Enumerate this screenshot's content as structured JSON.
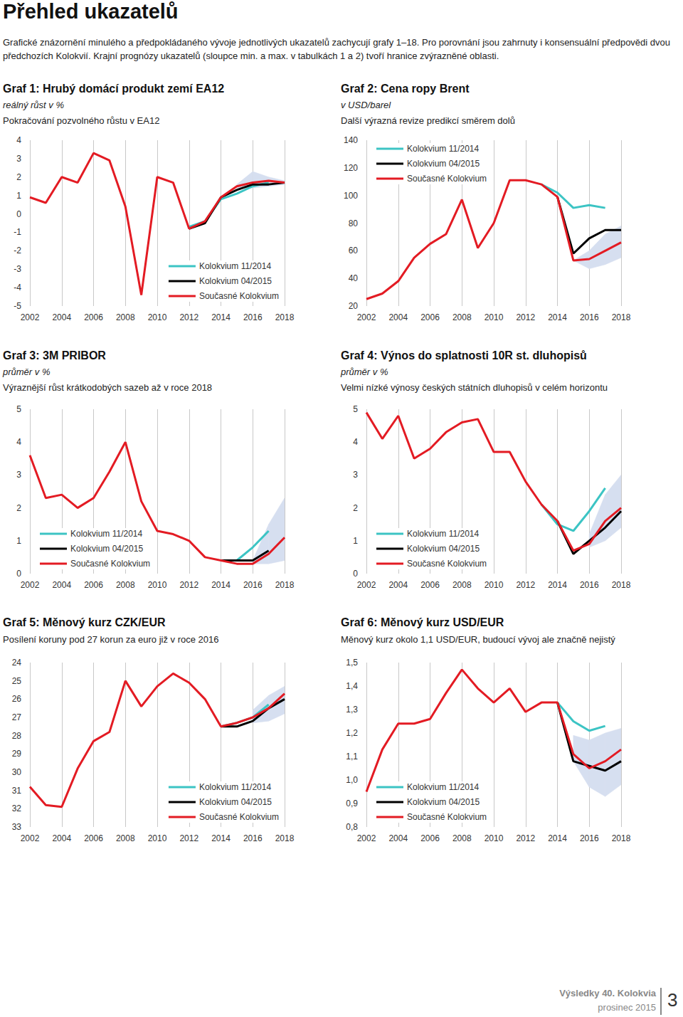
{
  "heading": "Přehled ukazatelů",
  "intro": "Grafické znázornění minulého a předpokládaného vývoje jednotlivých ukazatelů zachycují grafy 1–18. Pro porovnání jsou zahrnuty i konsensuální předpovědi dvou předchozích Kolokvií. Krajní prognózy ukazatelů (sloupce min. a max. v tabulkách 1 a 2) tvoří hranice zvýrazněné oblasti.",
  "footer": {
    "line1": "Výsledky 40. Kolokvia",
    "line2": "prosinec 2015",
    "page": "3"
  },
  "chart_data": [
    {
      "type": "line",
      "title": "Graf 1: Hrubý domácí produkt zemí EA12",
      "subtitle": "reálný růst v %",
      "caption": "Pokračování pozvolného růstu v EA12",
      "x": [
        2002,
        2003,
        2004,
        2005,
        2006,
        2007,
        2008,
        2009,
        2010,
        2011,
        2012,
        2013,
        2014,
        2015,
        2016,
        2017,
        2018
      ],
      "xlim": [
        2002,
        2018
      ],
      "xticks": [
        2002,
        2004,
        2006,
        2008,
        2010,
        2012,
        2014,
        2016,
        2018
      ],
      "ylim": [
        -5,
        4
      ],
      "yticks": [
        -5,
        -4,
        -3,
        -2,
        -1,
        0,
        1,
        2,
        3,
        4
      ],
      "grid": true,
      "legend": "lower right",
      "range": {
        "low": [
          null,
          null,
          null,
          null,
          null,
          null,
          null,
          null,
          null,
          null,
          null,
          null,
          null,
          1.4,
          1.4,
          1.5,
          1.6
        ],
        "high": [
          null,
          null,
          null,
          null,
          null,
          null,
          null,
          null,
          null,
          null,
          null,
          null,
          null,
          1.6,
          2.3,
          2.0,
          1.8
        ]
      },
      "series": [
        {
          "name": "Kolokvium 11/2014",
          "color": "#3cc4c4",
          "values": [
            null,
            null,
            null,
            null,
            null,
            null,
            null,
            null,
            null,
            null,
            -0.7,
            -0.4,
            0.8,
            1.1,
            1.5,
            1.7,
            null
          ]
        },
        {
          "name": "Kolokvium 04/2015",
          "color": "#000000",
          "values": [
            null,
            null,
            null,
            null,
            null,
            null,
            null,
            null,
            null,
            null,
            -0.8,
            -0.5,
            0.9,
            1.3,
            1.6,
            1.6,
            1.7
          ]
        },
        {
          "name": "Současné Kolokvium",
          "color": "#e31b23",
          "values": [
            0.9,
            0.6,
            2.0,
            1.7,
            3.3,
            2.9,
            0.4,
            -4.4,
            2.0,
            1.7,
            -0.8,
            -0.4,
            0.9,
            1.5,
            1.7,
            1.8,
            1.7
          ]
        }
      ]
    },
    {
      "type": "line",
      "title": "Graf 2: Cena ropy Brent",
      "subtitle": "v USD/barel",
      "caption": "Další výrazná revize predikcí směrem dolů",
      "x": [
        2002,
        2003,
        2004,
        2005,
        2006,
        2007,
        2008,
        2009,
        2010,
        2011,
        2012,
        2013,
        2014,
        2015,
        2016,
        2017,
        2018
      ],
      "xlim": [
        2002,
        2018
      ],
      "xticks": [
        2002,
        2004,
        2006,
        2008,
        2010,
        2012,
        2014,
        2016,
        2018
      ],
      "ylim": [
        20,
        140
      ],
      "yticks": [
        20,
        40,
        60,
        80,
        100,
        120,
        140
      ],
      "grid": true,
      "legend": "upper left",
      "range": {
        "low": [
          null,
          null,
          null,
          null,
          null,
          null,
          null,
          null,
          null,
          null,
          null,
          null,
          null,
          53,
          47,
          50,
          55
        ],
        "high": [
          null,
          null,
          null,
          null,
          null,
          null,
          null,
          null,
          null,
          null,
          null,
          null,
          null,
          53,
          60,
          72,
          78
        ]
      },
      "series": [
        {
          "name": "Kolokvium 11/2014",
          "color": "#3cc4c4",
          "values": [
            null,
            null,
            null,
            null,
            null,
            null,
            null,
            null,
            null,
            null,
            null,
            108,
            102,
            91,
            93,
            91,
            null
          ]
        },
        {
          "name": "Kolokvium 04/2015",
          "color": "#000000",
          "values": [
            null,
            null,
            null,
            null,
            null,
            null,
            null,
            null,
            null,
            null,
            null,
            null,
            99,
            58,
            69,
            75,
            75
          ]
        },
        {
          "name": "Současné Kolokvium",
          "color": "#e31b23",
          "values": [
            25,
            29,
            38,
            55,
            65,
            72,
            97,
            62,
            80,
            111,
            111,
            108,
            99,
            53,
            54,
            60,
            66
          ]
        }
      ]
    },
    {
      "type": "line",
      "title": "Graf 3: 3M PRIBOR",
      "subtitle": "průměr v %",
      "caption": "Výraznější růst krátkodobých sazeb až v roce 2018",
      "x": [
        2002,
        2003,
        2004,
        2005,
        2006,
        2007,
        2008,
        2009,
        2010,
        2011,
        2012,
        2013,
        2014,
        2015,
        2016,
        2017,
        2018
      ],
      "xlim": [
        2002,
        2018
      ],
      "xticks": [
        2002,
        2004,
        2006,
        2008,
        2010,
        2012,
        2014,
        2016,
        2018
      ],
      "ylim": [
        0,
        5
      ],
      "yticks": [
        0,
        1,
        2,
        3,
        4,
        5
      ],
      "grid": true,
      "legend": "lower left",
      "range": {
        "low": [
          null,
          null,
          null,
          null,
          null,
          null,
          null,
          null,
          null,
          null,
          null,
          null,
          null,
          null,
          0.3,
          0.3,
          0.4
        ],
        "high": [
          null,
          null,
          null,
          null,
          null,
          null,
          null,
          null,
          null,
          null,
          null,
          null,
          null,
          null,
          0.4,
          1.5,
          2.3
        ]
      },
      "series": [
        {
          "name": "Kolokvium 11/2014",
          "color": "#3cc4c4",
          "values": [
            null,
            null,
            null,
            null,
            null,
            null,
            null,
            null,
            null,
            null,
            null,
            null,
            0.4,
            0.4,
            0.8,
            1.3,
            null
          ]
        },
        {
          "name": "Kolokvium 04/2015",
          "color": "#000000",
          "values": [
            null,
            null,
            null,
            null,
            null,
            null,
            null,
            null,
            null,
            null,
            null,
            null,
            0.4,
            0.4,
            0.4,
            0.7,
            null
          ]
        },
        {
          "name": "Současné Kolokvium",
          "color": "#e31b23",
          "values": [
            3.6,
            2.3,
            2.4,
            2.0,
            2.3,
            3.1,
            4.0,
            2.2,
            1.3,
            1.2,
            1.0,
            0.5,
            0.4,
            0.3,
            0.3,
            0.6,
            1.1
          ]
        }
      ]
    },
    {
      "type": "line",
      "title": "Graf 4: Výnos do splatnosti 10R st. dluhopisů",
      "subtitle": "průměr v %",
      "caption": "Velmi nízké výnosy českých státních dluhopisů v celém horizontu",
      "x": [
        2002,
        2003,
        2004,
        2005,
        2006,
        2007,
        2008,
        2009,
        2010,
        2011,
        2012,
        2013,
        2014,
        2015,
        2016,
        2017,
        2018
      ],
      "xlim": [
        2002,
        2018
      ],
      "xticks": [
        2002,
        2004,
        2006,
        2008,
        2010,
        2012,
        2014,
        2016,
        2018
      ],
      "ylim": [
        0,
        5
      ],
      "yticks": [
        0,
        1,
        2,
        3,
        4,
        5
      ],
      "grid": true,
      "legend": "lower left",
      "range": {
        "low": [
          null,
          null,
          null,
          null,
          null,
          null,
          null,
          null,
          null,
          null,
          null,
          null,
          null,
          null,
          0.8,
          1.0,
          1.4
        ],
        "high": [
          null,
          null,
          null,
          null,
          null,
          null,
          null,
          null,
          null,
          null,
          null,
          null,
          null,
          null,
          1.2,
          2.4,
          3.0
        ]
      },
      "series": [
        {
          "name": "Kolokvium 11/2014",
          "color": "#3cc4c4",
          "values": [
            null,
            null,
            null,
            null,
            null,
            null,
            null,
            null,
            null,
            null,
            null,
            2.1,
            1.5,
            1.3,
            1.9,
            2.6,
            null
          ]
        },
        {
          "name": "Kolokvium 04/2015",
          "color": "#000000",
          "values": [
            null,
            null,
            null,
            null,
            null,
            null,
            null,
            null,
            null,
            null,
            null,
            null,
            1.6,
            0.6,
            1.0,
            1.4,
            1.9
          ]
        },
        {
          "name": "Současné Kolokvium",
          "color": "#e31b23",
          "values": [
            4.9,
            4.1,
            4.8,
            3.5,
            3.8,
            4.3,
            4.6,
            4.7,
            3.7,
            3.7,
            2.8,
            2.1,
            1.6,
            0.7,
            0.9,
            1.6,
            2.0
          ]
        }
      ]
    },
    {
      "type": "line",
      "title": "Graf 5: Měnový kurz CZK/EUR",
      "caption": "Posílení koruny pod 27 korun za euro již v roce 2016",
      "x": [
        2002,
        2003,
        2004,
        2005,
        2006,
        2007,
        2008,
        2009,
        2010,
        2011,
        2012,
        2013,
        2014,
        2015,
        2016,
        2017,
        2018
      ],
      "xlim": [
        2002,
        2018
      ],
      "xticks": [
        2002,
        2004,
        2006,
        2008,
        2010,
        2012,
        2014,
        2016,
        2018
      ],
      "ylim": [
        33,
        24
      ],
      "yticks": [
        33,
        32,
        31,
        30,
        29,
        28,
        27,
        26,
        25,
        24
      ],
      "grid": true,
      "legend": "lower right",
      "range": {
        "low": [
          null,
          null,
          null,
          null,
          null,
          null,
          null,
          null,
          null,
          null,
          null,
          null,
          null,
          null,
          26.6,
          25.8,
          25.3
        ],
        "high": [
          null,
          null,
          null,
          null,
          null,
          null,
          null,
          null,
          null,
          null,
          null,
          null,
          null,
          null,
          27.3,
          27.2,
          26.8
        ]
      },
      "series": [
        {
          "name": "Kolokvium 11/2014",
          "color": "#3cc4c4",
          "values": [
            null,
            null,
            null,
            null,
            null,
            null,
            null,
            null,
            null,
            null,
            null,
            null,
            27.5,
            27.3,
            27.0,
            26.3,
            null
          ]
        },
        {
          "name": "Kolokvium 04/2015",
          "color": "#000000",
          "values": [
            null,
            null,
            null,
            null,
            null,
            null,
            null,
            null,
            null,
            null,
            null,
            null,
            27.5,
            27.5,
            27.2,
            26.5,
            26.0
          ]
        },
        {
          "name": "Současné Kolokvium",
          "color": "#e31b23",
          "values": [
            30.8,
            31.8,
            31.9,
            29.8,
            28.3,
            27.8,
            25.0,
            26.4,
            25.3,
            24.6,
            25.1,
            26.0,
            27.5,
            27.3,
            27.0,
            26.5,
            25.7
          ]
        }
      ]
    },
    {
      "type": "line",
      "title": "Graf 6: Měnový kurz USD/EUR",
      "caption": "Měnový kurz okolo 1,1 USD/EUR, budoucí vývoj ale značně nejistý",
      "x": [
        2002,
        2003,
        2004,
        2005,
        2006,
        2007,
        2008,
        2009,
        2010,
        2011,
        2012,
        2013,
        2014,
        2015,
        2016,
        2017,
        2018
      ],
      "xlim": [
        2002,
        2018
      ],
      "xticks": [
        2002,
        2004,
        2006,
        2008,
        2010,
        2012,
        2014,
        2016,
        2018
      ],
      "ylim": [
        0.8,
        1.5
      ],
      "yticks": [
        {
          "value": 0.8,
          "label": "0,8"
        },
        {
          "value": 0.9,
          "label": "0,9"
        },
        {
          "value": 1.0,
          "label": "1,0"
        },
        {
          "value": 1.1,
          "label": "1,1"
        },
        {
          "value": 1.2,
          "label": "1,2"
        },
        {
          "value": 1.3,
          "label": "1,3"
        },
        {
          "value": 1.4,
          "label": "1,4"
        },
        {
          "value": 1.5,
          "label": "1,5"
        }
      ],
      "grid": true,
      "legend": "lower left",
      "range": {
        "low": [
          null,
          null,
          null,
          null,
          null,
          null,
          null,
          null,
          null,
          null,
          null,
          null,
          null,
          1.08,
          0.97,
          0.93,
          0.98
        ],
        "high": [
          null,
          null,
          null,
          null,
          null,
          null,
          null,
          null,
          null,
          null,
          null,
          null,
          null,
          1.19,
          1.17,
          1.2,
          1.22
        ]
      },
      "series": [
        {
          "name": "Kolokvium 11/2014",
          "color": "#3cc4c4",
          "values": [
            null,
            null,
            null,
            null,
            null,
            null,
            null,
            null,
            null,
            null,
            null,
            null,
            1.33,
            1.25,
            1.21,
            1.23,
            null
          ]
        },
        {
          "name": "Kolokvium 04/2015",
          "color": "#000000",
          "values": [
            null,
            null,
            null,
            null,
            null,
            null,
            null,
            null,
            null,
            null,
            null,
            null,
            1.33,
            1.08,
            1.06,
            1.04,
            1.08
          ]
        },
        {
          "name": "Současné Kolokvium",
          "color": "#e31b23",
          "values": [
            0.95,
            1.13,
            1.24,
            1.24,
            1.26,
            1.37,
            1.47,
            1.39,
            1.33,
            1.39,
            1.29,
            1.33,
            1.33,
            1.11,
            1.05,
            1.08,
            1.13
          ]
        }
      ]
    }
  ]
}
